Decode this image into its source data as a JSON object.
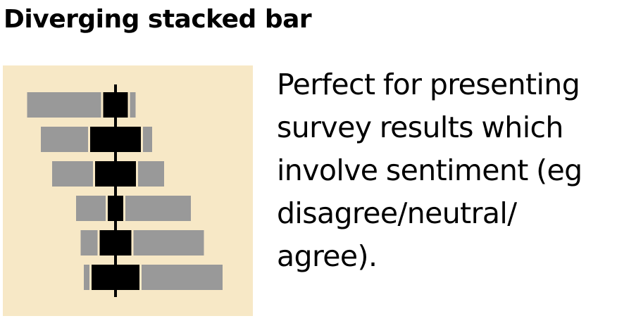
{
  "title": "Diverging stacked bar",
  "description_lines": [
    "Perfect for presenting",
    "survey results which",
    "involve sentiment (eg",
    "disagree/neutral/",
    "agree)."
  ],
  "colors": {
    "panel_background": "#f7e8c6",
    "negative_segment": "#999999",
    "neutral_segment": "#000000",
    "positive_segment": "#999999",
    "axis_line": "#000000",
    "text": "#000000"
  },
  "icon": {
    "name": "diverging-stacked-bar-icon",
    "rows": [
      {
        "negative": 105,
        "neutral": 35,
        "positive": 8
      },
      {
        "negative": 67,
        "neutral": 72,
        "positive": 13
      },
      {
        "negative": 58,
        "neutral": 58,
        "positive": 37
      },
      {
        "negative": 42,
        "neutral": 22,
        "positive": 93
      },
      {
        "negative": 24,
        "neutral": 45,
        "positive": 100
      },
      {
        "negative": 8,
        "neutral": 68,
        "positive": 115
      }
    ]
  }
}
